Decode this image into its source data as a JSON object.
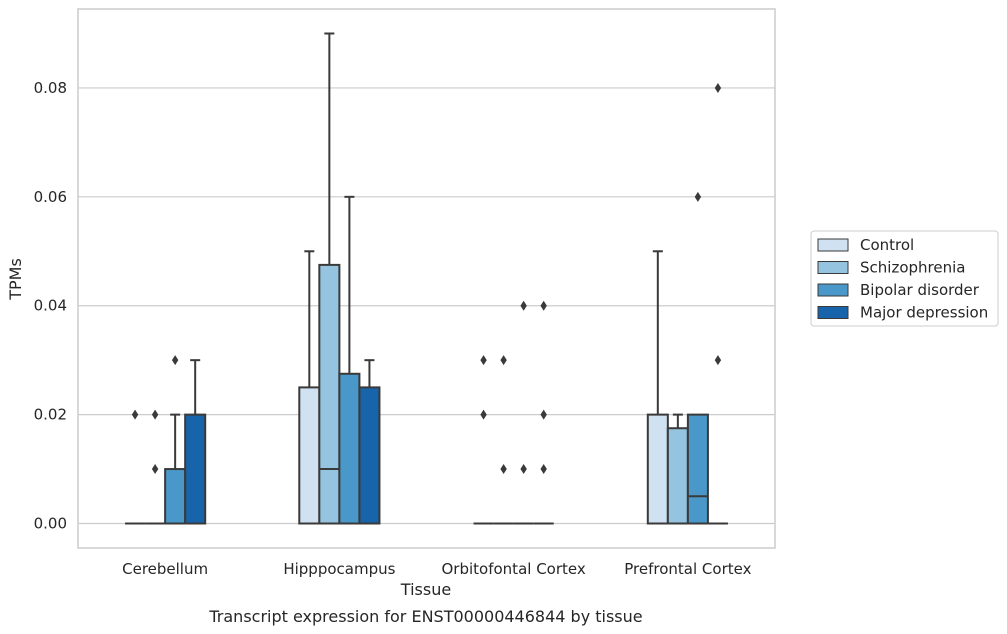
{
  "chart_data": {
    "type": "box",
    "xlabel": "Tissue",
    "ylabel": "TPMs",
    "caption": "Transcript expression for ENST00000446844 by tissue",
    "ylim": [
      -0.0045,
      0.0945
    ],
    "yticks": [
      "0.00",
      "0.02",
      "0.04",
      "0.06",
      "0.08"
    ],
    "ytick_values": [
      0,
      0.02,
      0.04,
      0.06,
      0.08
    ],
    "grid": "horizontal",
    "legend_position": "right",
    "categories": [
      "Cerebellum",
      "Hipppocampus",
      "Orbitofontal Cortex",
      "Prefrontal Cortex"
    ],
    "series": [
      {
        "name": "Control",
        "color": "#d0e1f2",
        "boxes": [
          {
            "q1": 0,
            "median": 0,
            "q3": 0,
            "whisker_low": 0,
            "whisker_high": 0,
            "outliers": [
              0.02
            ]
          },
          {
            "q1": 0,
            "median": 0,
            "q3": 0.025,
            "whisker_low": 0,
            "whisker_high": 0.05,
            "outliers": []
          },
          {
            "q1": 0,
            "median": 0,
            "q3": 0,
            "whisker_low": 0,
            "whisker_high": 0,
            "outliers": [
              0.02,
              0.03
            ]
          },
          {
            "q1": 0,
            "median": 0,
            "q3": 0.02,
            "whisker_low": 0,
            "whisker_high": 0.05,
            "outliers": []
          }
        ]
      },
      {
        "name": "Schizophrenia",
        "color": "#94c4df",
        "boxes": [
          {
            "q1": 0,
            "median": 0,
            "q3": 0,
            "whisker_low": 0,
            "whisker_high": 0,
            "outliers": [
              0.01,
              0.02
            ]
          },
          {
            "q1": 0,
            "median": 0.01,
            "q3": 0.0475,
            "whisker_low": 0,
            "whisker_high": 0.09,
            "outliers": []
          },
          {
            "q1": 0,
            "median": 0,
            "q3": 0,
            "whisker_low": 0,
            "whisker_high": 0,
            "outliers": [
              0.01,
              0.03
            ]
          },
          {
            "q1": 0,
            "median": 0,
            "q3": 0.0175,
            "whisker_low": 0,
            "whisker_high": 0.02,
            "outliers": []
          }
        ]
      },
      {
        "name": "Bipolar disorder",
        "color": "#4a98c9",
        "boxes": [
          {
            "q1": 0,
            "median": 0,
            "q3": 0.01,
            "whisker_low": 0,
            "whisker_high": 0.02,
            "outliers": [
              0.03
            ]
          },
          {
            "q1": 0,
            "median": 0,
            "q3": 0.0275,
            "whisker_low": 0,
            "whisker_high": 0.06,
            "outliers": []
          },
          {
            "q1": 0,
            "median": 0,
            "q3": 0,
            "whisker_low": 0,
            "whisker_high": 0,
            "outliers": [
              0.01,
              0.04
            ]
          },
          {
            "q1": 0,
            "median": 0.005,
            "q3": 0.02,
            "whisker_low": 0,
            "whisker_high": 0.02,
            "outliers": [
              0.06
            ]
          }
        ]
      },
      {
        "name": "Major depression",
        "color": "#1764ab",
        "boxes": [
          {
            "q1": 0,
            "median": 0,
            "q3": 0.02,
            "whisker_low": 0,
            "whisker_high": 0.03,
            "outliers": []
          },
          {
            "q1": 0,
            "median": 0,
            "q3": 0.025,
            "whisker_low": 0,
            "whisker_high": 0.03,
            "outliers": []
          },
          {
            "q1": 0,
            "median": 0,
            "q3": 0,
            "whisker_low": 0,
            "whisker_high": 0,
            "outliers": [
              0.01,
              0.02,
              0.04
            ]
          },
          {
            "q1": 0,
            "median": 0,
            "q3": 0,
            "whisker_low": 0,
            "whisker_high": 0,
            "outliers": [
              0.03,
              0.08
            ]
          }
        ]
      }
    ]
  }
}
